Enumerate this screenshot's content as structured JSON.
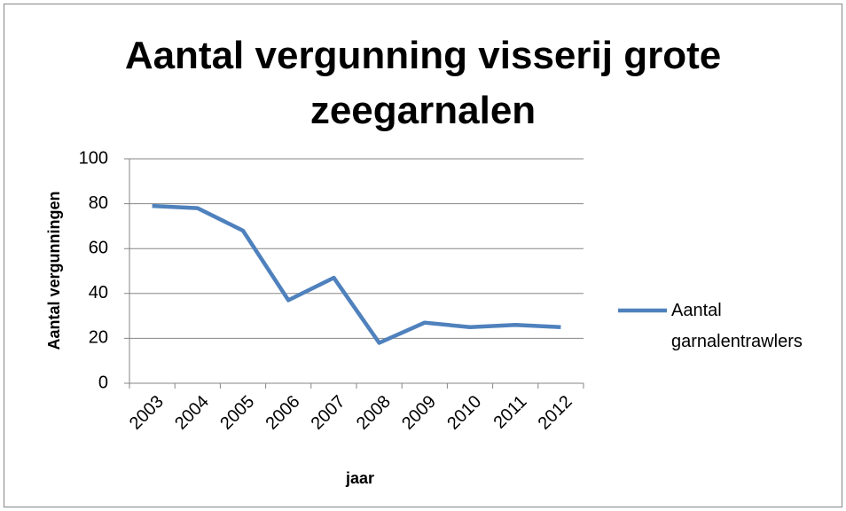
{
  "chart_data": {
    "type": "line",
    "title": "Aantal vergunning visserij grote zeegarnalen",
    "x_label": "jaar",
    "y_label": "Aantal vergunningen",
    "categories": [
      "2003",
      "2004",
      "2005",
      "2006",
      "2007",
      "2008",
      "2009",
      "2010",
      "2011",
      "2012"
    ],
    "series": [
      {
        "name": "Aantal garnalentrawlers",
        "color": "#4f81bd",
        "values": [
          79,
          78,
          68,
          37,
          47,
          18,
          27,
          25,
          26,
          25
        ]
      }
    ],
    "ylim": [
      0,
      100
    ],
    "yticks": [
      0,
      20,
      40,
      60,
      80,
      100
    ],
    "grid": true,
    "legend": "right"
  }
}
